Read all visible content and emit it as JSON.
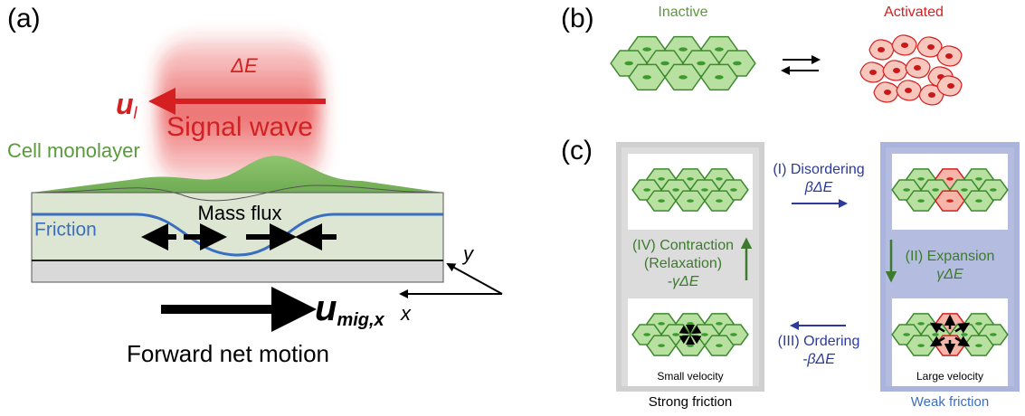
{
  "panel_a": {
    "label": "(a)",
    "energy": "ΔE",
    "wave_velocity": {
      "base": "u",
      "sub": "l"
    },
    "signal": "Signal wave",
    "monolayer": "Cell monolayer",
    "friction": "Friction",
    "flux": "Mass flux",
    "axis_y": "y",
    "axis_x": "x",
    "migration_velocity": {
      "base": "u",
      "sub": "mig,x"
    },
    "motion": "Forward net motion"
  },
  "panel_b": {
    "label": "(b)",
    "inactive": "Inactive",
    "activated": "Activated"
  },
  "panel_c": {
    "label": "(c)",
    "step_1": {
      "name": "(I) Disordering",
      "term": "βΔE"
    },
    "step_2": {
      "name": "(II) Expansion",
      "term": "γΔE"
    },
    "step_3": {
      "name": "(III) Ordering",
      "term": "-βΔE"
    },
    "step_4": {
      "name": "(IV) Contraction",
      "note": "(Relaxation)",
      "term": "-γΔE"
    },
    "small_velocity": "Small velocity",
    "large_velocity": "Large velocity",
    "strong_friction": "Strong friction",
    "weak_friction": "Weak friction"
  }
}
